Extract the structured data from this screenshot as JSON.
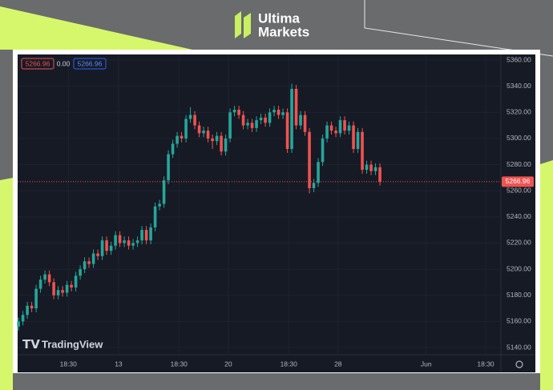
{
  "header": {
    "brand_line1": "Ultima",
    "brand_line2": "Markets"
  },
  "chart_data": {
    "type": "candlestick",
    "ohlc_labels": [
      "5266.96",
      "0.00",
      "5266.96"
    ],
    "watermark": "TradingView",
    "last_price": 5266.96,
    "up_color": "#26a69a",
    "down_color": "#ef5350",
    "grid": true,
    "xlim": [
      -0.2,
      109.45
    ],
    "xticks": [
      {
        "value": 11.3,
        "label": "18:30"
      },
      {
        "value": 22.7,
        "label": "13"
      },
      {
        "value": 36.4,
        "label": "18:30"
      },
      {
        "value": 47.6,
        "label": "20"
      },
      {
        "value": 61.3,
        "label": "18:30"
      },
      {
        "value": 72.5,
        "label": "28"
      },
      {
        "value": 92.5,
        "label": "Jun"
      },
      {
        "value": 106,
        "label": "18:30"
      }
    ],
    "ylim": [
      5134.5,
      5364.3
    ],
    "yticks": [
      {
        "value": 5140,
        "label": "5140.00"
      },
      {
        "value": 5160,
        "label": "5160.00"
      },
      {
        "value": 5180,
        "label": "5180.00"
      },
      {
        "value": 5200,
        "label": "5200.00"
      },
      {
        "value": 5220,
        "label": "5220.00"
      },
      {
        "value": 5240,
        "label": "5240.00"
      },
      {
        "value": 5260,
        "label": "5260.00"
      },
      {
        "value": 5280,
        "label": "5280.00"
      },
      {
        "value": 5300,
        "label": "5300.00"
      },
      {
        "value": 5320,
        "label": "5320.00"
      },
      {
        "value": 5340,
        "label": "5340.00"
      },
      {
        "value": 5360,
        "label": "5360.00"
      }
    ],
    "open": [
      5156,
      5160,
      5165,
      5172,
      5170,
      5185,
      5192,
      5196,
      5190,
      5180,
      5184,
      5182,
      5188,
      5186,
      5195,
      5200,
      5206,
      5204,
      5212,
      5210,
      5222,
      5214,
      5218,
      5226,
      5220,
      5222,
      5218,
      5220,
      5222,
      5230,
      5222,
      5232,
      5248,
      5250,
      5268,
      5288,
      5296,
      5302,
      5300,
      5315,
      5318,
      5310,
      5304,
      5306,
      5300,
      5298,
      5302,
      5290,
      5300,
      5320,
      5322,
      5318,
      5310,
      5312,
      5308,
      5314,
      5316,
      5312,
      5320,
      5322,
      5318,
      5320,
      5292,
      5338,
      5310,
      5318,
      5305,
      5262,
      5266,
      5282,
      5300,
      5310,
      5306,
      5304,
      5314,
      5306,
      5310,
      5292,
      5305,
      5276,
      5280,
      5275,
      5278
    ],
    "high": [
      5163,
      5168,
      5175,
      5175,
      5188,
      5195,
      5199,
      5199,
      5193,
      5187,
      5187,
      5191,
      5191,
      5198,
      5203,
      5209,
      5209,
      5215,
      5215,
      5225,
      5225,
      5221,
      5229,
      5229,
      5225,
      5225,
      5223,
      5225,
      5233,
      5233,
      5235,
      5251,
      5253,
      5271,
      5291,
      5299,
      5305,
      5305,
      5318,
      5324,
      5321,
      5313,
      5309,
      5309,
      5303,
      5305,
      5305,
      5303,
      5323,
      5325,
      5325,
      5321,
      5315,
      5315,
      5317,
      5319,
      5319,
      5323,
      5325,
      5325,
      5323,
      5323,
      5342,
      5341,
      5321,
      5321,
      5308,
      5269,
      5285,
      5303,
      5313,
      5313,
      5309,
      5317,
      5317,
      5313,
      5313,
      5308,
      5308,
      5283,
      5283,
      5281,
      5281
    ],
    "low": [
      5153,
      5157,
      5162,
      5167,
      5167,
      5182,
      5189,
      5187,
      5177,
      5177,
      5179,
      5179,
      5183,
      5183,
      5192,
      5197,
      5201,
      5201,
      5207,
      5207,
      5211,
      5211,
      5215,
      5217,
      5217,
      5215,
      5215,
      5217,
      5219,
      5219,
      5219,
      5229,
      5245,
      5247,
      5265,
      5285,
      5293,
      5297,
      5297,
      5312,
      5307,
      5301,
      5301,
      5297,
      5292,
      5295,
      5287,
      5287,
      5297,
      5317,
      5315,
      5307,
      5307,
      5305,
      5305,
      5311,
      5309,
      5309,
      5317,
      5315,
      5315,
      5289,
      5289,
      5307,
      5307,
      5302,
      5258,
      5259,
      5263,
      5279,
      5297,
      5303,
      5301,
      5301,
      5303,
      5303,
      5289,
      5289,
      5273,
      5273,
      5272,
      5272,
      5264
    ],
    "close": [
      5160,
      5165,
      5172,
      5170,
      5185,
      5192,
      5196,
      5190,
      5180,
      5184,
      5182,
      5188,
      5186,
      5195,
      5200,
      5206,
      5204,
      5212,
      5210,
      5222,
      5214,
      5218,
      5226,
      5220,
      5222,
      5218,
      5220,
      5222,
      5230,
      5222,
      5232,
      5248,
      5250,
      5268,
      5288,
      5296,
      5302,
      5300,
      5315,
      5318,
      5310,
      5304,
      5306,
      5300,
      5298,
      5302,
      5290,
      5300,
      5320,
      5322,
      5318,
      5310,
      5312,
      5308,
      5314,
      5316,
      5312,
      5320,
      5322,
      5318,
      5320,
      5292,
      5338,
      5310,
      5318,
      5305,
      5262,
      5266,
      5282,
      5300,
      5310,
      5306,
      5304,
      5314,
      5306,
      5310,
      5292,
      5305,
      5276,
      5280,
      5275,
      5278,
      5266.96
    ]
  }
}
